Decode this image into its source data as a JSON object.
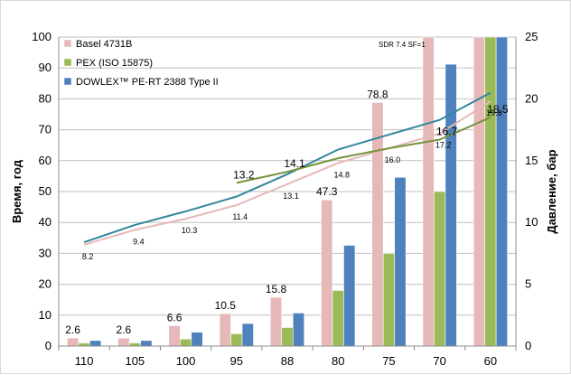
{
  "chart_data": {
    "type": "bar",
    "categories": [
      "110",
      "105",
      "100",
      "95",
      "88",
      "80",
      "75",
      "70",
      "60"
    ],
    "ylabel_left": "Время, год",
    "ylabel_right": "Давление, бар",
    "ylim_left": [
      0,
      100
    ],
    "ylim_right": [
      0,
      25
    ],
    "yticks_left": [
      "0",
      "10",
      "20",
      "30",
      "40",
      "50",
      "60",
      "70",
      "80",
      "90",
      "100"
    ],
    "yticks_right": [
      "0",
      "5",
      "10",
      "15",
      "20",
      "25"
    ],
    "grid": true,
    "legend_position": "top-left",
    "note": "SDR 7.4 SF=1",
    "bar_labels": [
      "2.6",
      "2.6",
      "6.6",
      "10.5",
      "15.8",
      "47.3",
      "78.8",
      "",
      ""
    ],
    "series": [
      {
        "name": "Basel 4731B",
        "kind": "bar",
        "color": "#e6b9b8",
        "values": [
          2.6,
          2.6,
          6.6,
          10.5,
          15.8,
          47.3,
          78.8,
          100,
          100
        ]
      },
      {
        "name": "PEX (ISO 15875)",
        "kind": "bar",
        "color": "#9bbb59",
        "values": [
          1,
          1,
          2.3,
          4,
          6,
          18,
          30,
          50,
          100
        ]
      },
      {
        "name": "DOWLEX™ PE-RT 2388  Type II",
        "kind": "bar",
        "color": "#4f81bd",
        "values": [
          1.8,
          1.8,
          4.5,
          7.3,
          10.7,
          32.6,
          54.6,
          91.2,
          100
        ]
      }
    ],
    "line_series": [
      {
        "color": "#31859c",
        "values": [
          8.4,
          9.8,
          10.9,
          12.1,
          13.9,
          15.9,
          17.1,
          18.3,
          20.5
        ]
      },
      {
        "color": "#e6b9b8",
        "values": [
          8.2,
          9.4,
          10.3,
          11.4,
          13.1,
          14.8,
          16.0,
          17.2,
          19.8
        ]
      },
      {
        "color": "#77933c",
        "values": [
          null,
          null,
          null,
          13.2,
          14.1,
          15.2,
          16.0,
          16.7,
          18.5
        ]
      }
    ],
    "line_labels": [
      {
        "series": 1,
        "index": 0,
        "text": "8.2"
      },
      {
        "series": 1,
        "index": 1,
        "text": "9.4"
      },
      {
        "series": 1,
        "index": 2,
        "text": "10.3"
      },
      {
        "series": 1,
        "index": 3,
        "text": "11.4"
      },
      {
        "series": 1,
        "index": 4,
        "text": "13.1"
      },
      {
        "series": 1,
        "index": 5,
        "text": "14.8"
      },
      {
        "series": 1,
        "index": 6,
        "text": "16.0"
      },
      {
        "series": 1,
        "index": 7,
        "text": "17.2"
      },
      {
        "series": 1,
        "index": 8,
        "text": "19.8"
      },
      {
        "series": 2,
        "index": 3,
        "text": "13.2"
      },
      {
        "series": 2,
        "index": 4,
        "text": "14.1"
      },
      {
        "series": 2,
        "index": 7,
        "text": "16.7"
      },
      {
        "series": 2,
        "index": 8,
        "text": "18.5"
      }
    ]
  }
}
